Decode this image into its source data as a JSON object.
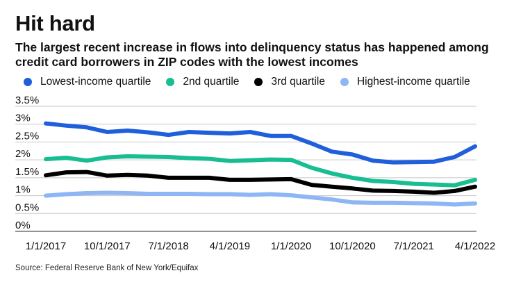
{
  "title": "Hit hard",
  "subtitle": "The largest recent increase in flows into delinquency status has happened among credit card borrowers in ZIP codes with the lowest incomes",
  "source": "Source: Federal Reserve Bank of New York/Equifax",
  "chart_data": {
    "type": "line",
    "title": "Hit hard",
    "subtitle": "The largest recent increase in flows into delinquency status has happened among credit card borrowers in ZIP codes with the lowest incomes",
    "xlabel": "",
    "ylabel": "",
    "x": [
      "1/1/2017",
      "4/1/2017",
      "7/1/2017",
      "10/1/2017",
      "1/1/2018",
      "4/1/2018",
      "7/1/2018",
      "10/1/2018",
      "1/1/2019",
      "4/1/2019",
      "7/1/2019",
      "10/1/2019",
      "1/1/2020",
      "4/1/2020",
      "7/1/2020",
      "10/1/2020",
      "1/1/2021",
      "4/1/2021",
      "7/1/2021",
      "10/1/2021",
      "1/1/2022",
      "4/1/2022"
    ],
    "x_tick_labels": [
      "1/1/2017",
      "10/1/2017",
      "7/1/2018",
      "4/1/2019",
      "1/1/2020",
      "10/1/2020",
      "7/1/2021",
      "4/1/2022"
    ],
    "x_tick_indices": [
      0,
      3,
      6,
      9,
      12,
      15,
      18,
      21
    ],
    "y_ticks": [
      "3.5%",
      "3%",
      "2.5%",
      "2%",
      "1.5%",
      "1%",
      "0.5%",
      "0%"
    ],
    "y_tick_values": [
      3.5,
      3,
      2.5,
      2,
      1.5,
      1,
      0.5,
      0
    ],
    "ylim": [
      0,
      3.5
    ],
    "grid": true,
    "legend_position": "top",
    "series": [
      {
        "name": "Lowest-income quartile",
        "color": "#1f5fdc",
        "values": [
          3.02,
          2.96,
          2.91,
          2.78,
          2.82,
          2.77,
          2.7,
          2.78,
          2.76,
          2.74,
          2.78,
          2.67,
          2.67,
          2.46,
          2.23,
          2.15,
          1.98,
          1.93,
          1.94,
          1.95,
          2.08,
          2.38
        ]
      },
      {
        "name": "2nd quartile",
        "color": "#18be92",
        "values": [
          2.02,
          2.06,
          1.98,
          2.07,
          2.1,
          2.09,
          2.08,
          2.05,
          2.03,
          1.97,
          1.99,
          2.01,
          2.0,
          1.78,
          1.62,
          1.5,
          1.41,
          1.38,
          1.33,
          1.31,
          1.29,
          1.44
        ]
      },
      {
        "name": "3rd quartile",
        "color": "#000000",
        "values": [
          1.57,
          1.65,
          1.66,
          1.56,
          1.58,
          1.56,
          1.5,
          1.5,
          1.5,
          1.44,
          1.44,
          1.45,
          1.46,
          1.3,
          1.25,
          1.2,
          1.14,
          1.13,
          1.11,
          1.08,
          1.13,
          1.25
        ]
      },
      {
        "name": "Highest-income quartile",
        "color": "#8eb6f5",
        "values": [
          1.0,
          1.04,
          1.07,
          1.08,
          1.07,
          1.05,
          1.05,
          1.05,
          1.04,
          1.04,
          1.02,
          1.04,
          1.01,
          0.95,
          0.89,
          0.81,
          0.8,
          0.8,
          0.79,
          0.78,
          0.75,
          0.78
        ]
      }
    ]
  }
}
